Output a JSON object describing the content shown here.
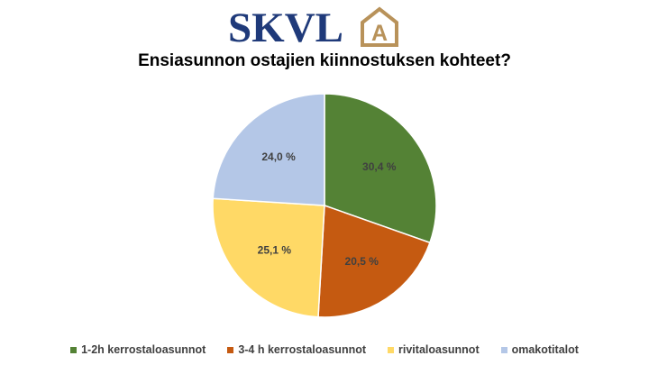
{
  "logo": {
    "text": "SKVL",
    "badge_letter": "A",
    "text_color": "#1f3a7a",
    "badge_color": "#b8925a"
  },
  "chart_data": {
    "type": "pie",
    "title": "Ensiasunnon ostajien kiinnostuksen kohteet?",
    "slices": [
      {
        "label": "1-2h kerrostaloasunnot",
        "value": 30.4,
        "display": "30,4 %",
        "color": "#548235"
      },
      {
        "label": "3-4 h kerrostaloasunnot",
        "value": 20.5,
        "display": "20,5 %",
        "color": "#c55a11"
      },
      {
        "label": "rivitaloasunnot",
        "value": 25.1,
        "display": "25,1 %",
        "color": "#ffd966"
      },
      {
        "label": "omakotitalot",
        "value": 24.0,
        "display": "24,0 %",
        "color": "#b4c7e7"
      }
    ],
    "legend_position": "bottom",
    "start_angle": "12 o'clock",
    "direction": "clockwise"
  }
}
